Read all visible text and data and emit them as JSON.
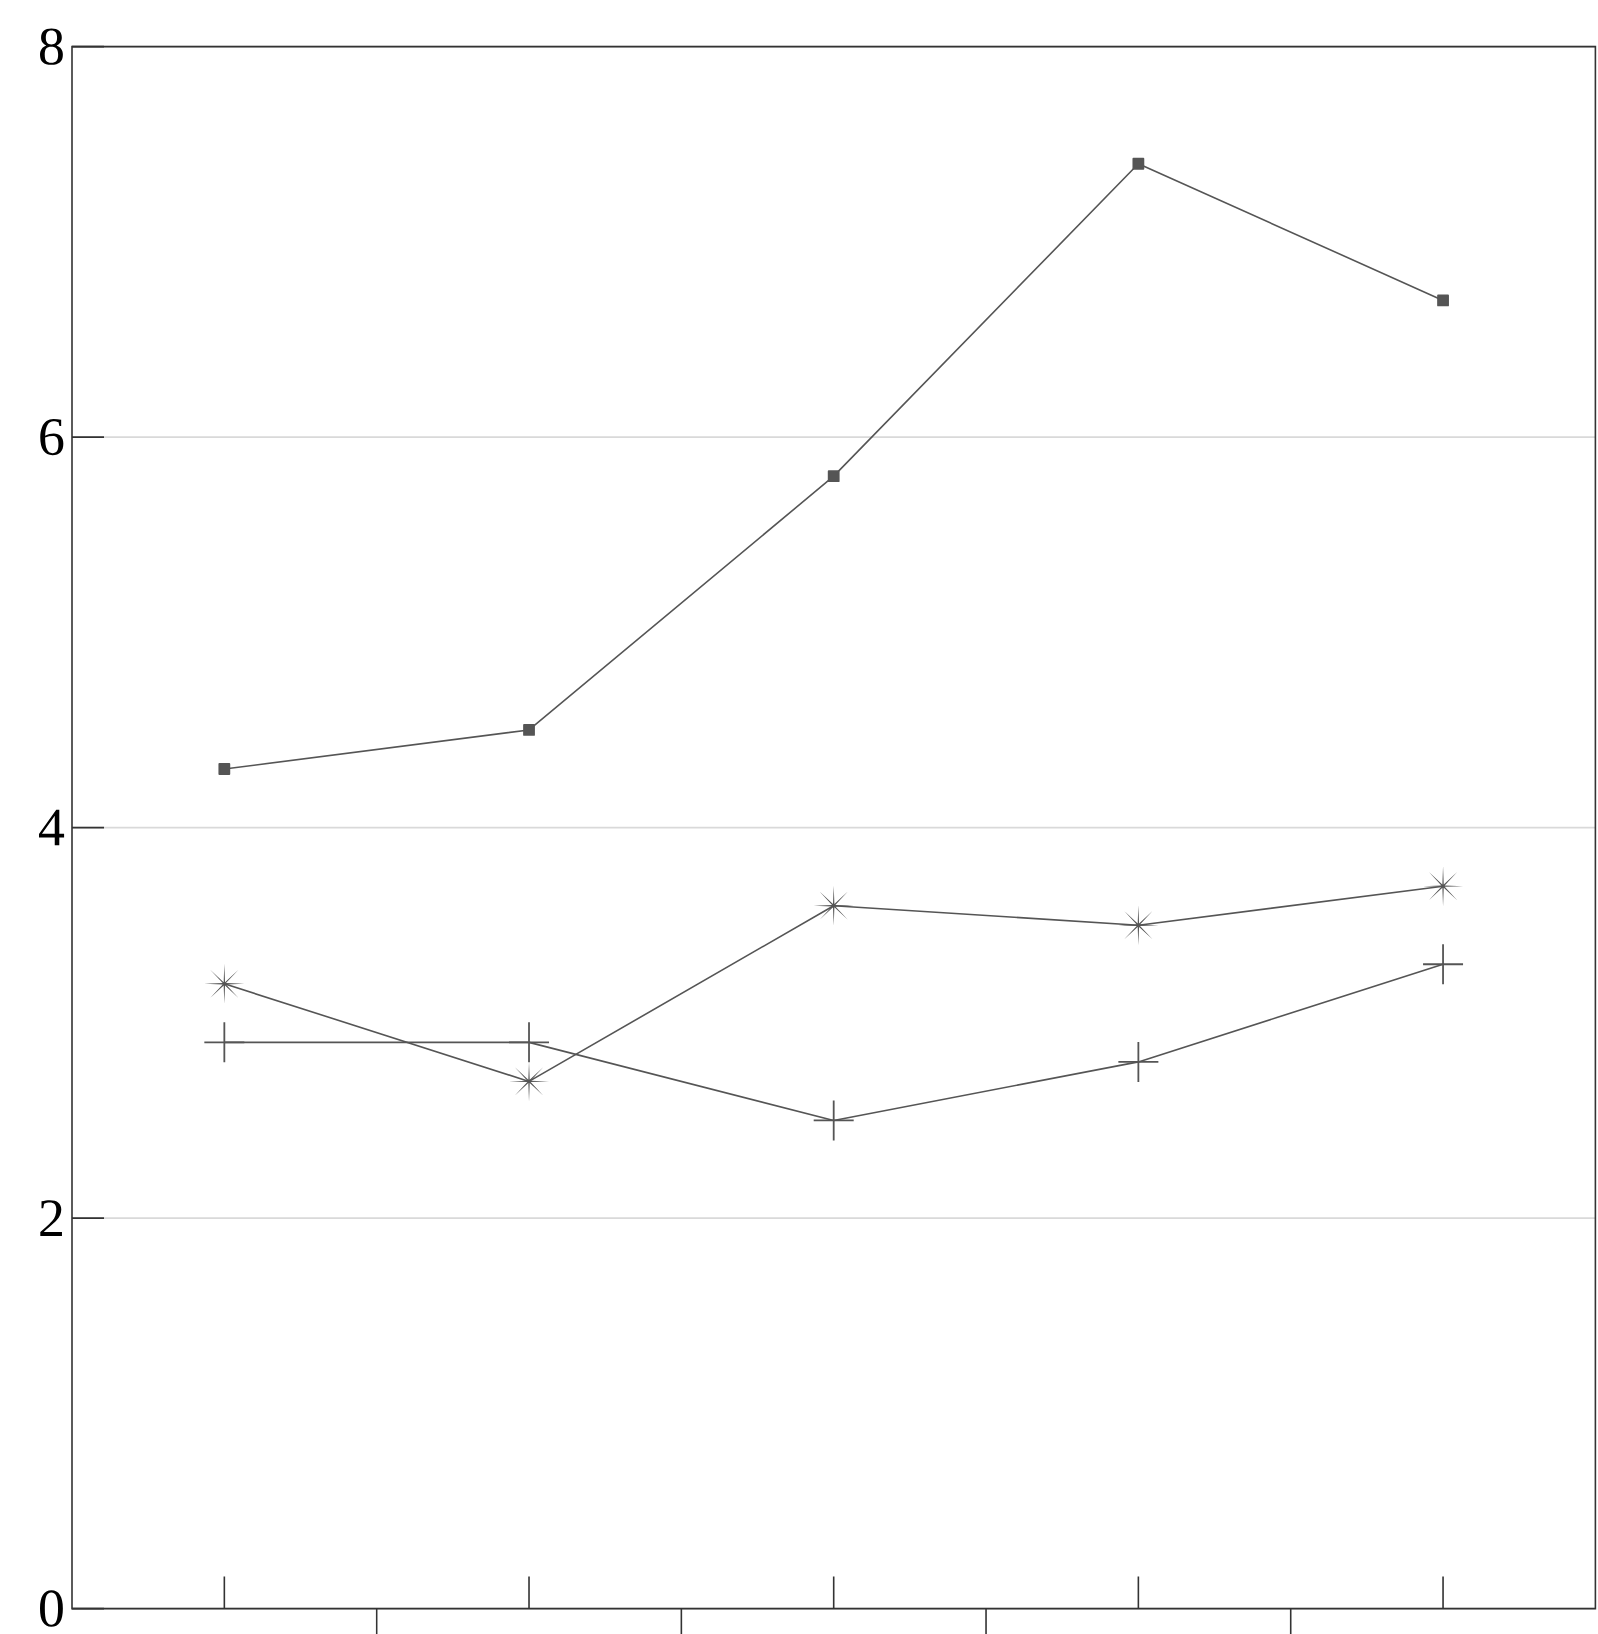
{
  "chart_data": {
    "type": "line",
    "categories": [
      null,
      null,
      null,
      null,
      null
    ],
    "series": [
      {
        "color": "#555555",
        "marker": "square",
        "values": [
          4.3,
          4.5,
          5.8,
          7.4,
          6.7
        ]
      },
      {
        "color": "#555555",
        "marker": "star",
        "values": [
          3.2,
          2.7,
          3.6,
          3.5,
          3.7
        ]
      },
      {
        "color": "#555555",
        "marker": "cross",
        "values": [
          2.9,
          2.9,
          2.5,
          2.8,
          3.3
        ]
      }
    ],
    "ylim": [
      0,
      8
    ],
    "yticks": [
      0,
      2,
      4,
      6,
      8
    ],
    "grid": "y",
    "tick_labels": "y",
    "line_style": "solid"
  }
}
